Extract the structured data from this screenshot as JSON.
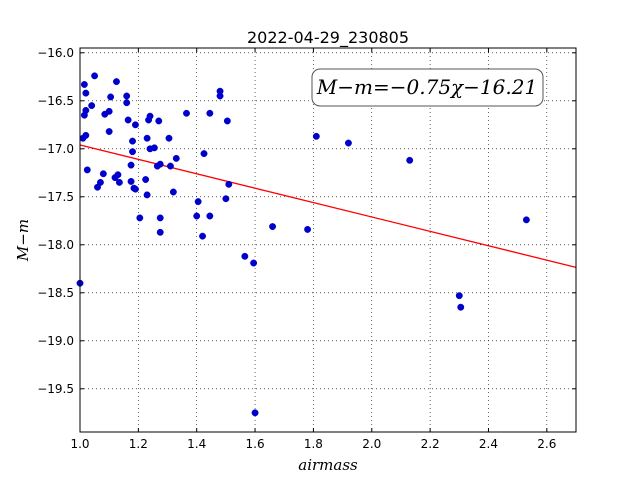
{
  "chart_data": {
    "type": "scatter",
    "title": "2022-04-29_230805",
    "xlabel": "airmass",
    "ylabel": "M−m",
    "xlim": [
      1.0,
      2.7
    ],
    "ylim": [
      -19.95,
      -15.95
    ],
    "y_inverted": true,
    "xticks": [
      1.0,
      1.2,
      1.4,
      1.6,
      1.8,
      2.0,
      2.2,
      2.4,
      2.6
    ],
    "xtick_labels": [
      "1.0",
      "1.2",
      "1.4",
      "1.6",
      "1.8",
      "2.0",
      "2.2",
      "2.4",
      "2.6"
    ],
    "yticks": [
      -16.0,
      -16.5,
      -17.0,
      -17.5,
      -18.0,
      -18.5,
      -19.0,
      -19.5
    ],
    "ytick_labels": [
      "−16.0",
      "−16.5",
      "−17.0",
      "−17.5",
      "−18.0",
      "−18.5",
      "−19.0",
      "−19.5"
    ],
    "grid": true,
    "annotation": "M−m=−0.75χ−16.21",
    "annotation_position": "top-right",
    "fit": {
      "slope": -0.75,
      "intercept": -16.21,
      "color": "#ff0000"
    },
    "point_color": "#0000cc",
    "points": [
      [
        1.0,
        -18.4
      ],
      [
        1.01,
        -16.89
      ],
      [
        1.015,
        -16.65
      ],
      [
        1.015,
        -16.33
      ],
      [
        1.02,
        -16.42
      ],
      [
        1.02,
        -16.6
      ],
      [
        1.02,
        -16.86
      ],
      [
        1.025,
        -17.22
      ],
      [
        1.04,
        -16.55
      ],
      [
        1.05,
        -16.24
      ],
      [
        1.06,
        -17.4
      ],
      [
        1.07,
        -17.35
      ],
      [
        1.08,
        -17.26
      ],
      [
        1.085,
        -16.64
      ],
      [
        1.1,
        -16.61
      ],
      [
        1.1,
        -16.82
      ],
      [
        1.105,
        -16.46
      ],
      [
        1.12,
        -17.3
      ],
      [
        1.13,
        -17.27
      ],
      [
        1.135,
        -17.35
      ],
      [
        1.125,
        -16.3
      ],
      [
        1.16,
        -16.45
      ],
      [
        1.16,
        -16.52
      ],
      [
        1.165,
        -16.7
      ],
      [
        1.175,
        -17.17
      ],
      [
        1.175,
        -17.34
      ],
      [
        1.18,
        -16.92
      ],
      [
        1.18,
        -17.03
      ],
      [
        1.185,
        -17.41
      ],
      [
        1.19,
        -17.42
      ],
      [
        1.19,
        -16.75
      ],
      [
        1.205,
        -17.72
      ],
      [
        1.225,
        -17.32
      ],
      [
        1.23,
        -17.48
      ],
      [
        1.23,
        -16.89
      ],
      [
        1.235,
        -16.7
      ],
      [
        1.24,
        -16.66
      ],
      [
        1.24,
        -17.0
      ],
      [
        1.255,
        -16.99
      ],
      [
        1.265,
        -17.18
      ],
      [
        1.27,
        -16.71
      ],
      [
        1.275,
        -17.72
      ],
      [
        1.275,
        -17.87
      ],
      [
        1.275,
        -17.16
      ],
      [
        1.305,
        -16.89
      ],
      [
        1.31,
        -17.18
      ],
      [
        1.32,
        -17.45
      ],
      [
        1.33,
        -17.1
      ],
      [
        1.365,
        -16.63
      ],
      [
        1.4,
        -17.7
      ],
      [
        1.405,
        -17.55
      ],
      [
        1.42,
        -17.91
      ],
      [
        1.425,
        -17.05
      ],
      [
        1.445,
        -17.7
      ],
      [
        1.445,
        -16.63
      ],
      [
        1.48,
        -16.4
      ],
      [
        1.48,
        -16.45
      ],
      [
        1.5,
        -17.52
      ],
      [
        1.505,
        -16.71
      ],
      [
        1.51,
        -17.37
      ],
      [
        1.565,
        -18.12
      ],
      [
        1.595,
        -18.19
      ],
      [
        1.6,
        -19.75
      ],
      [
        1.66,
        -17.81
      ],
      [
        1.78,
        -17.84
      ],
      [
        1.81,
        -16.87
      ],
      [
        1.92,
        -16.94
      ],
      [
        2.13,
        -17.12
      ],
      [
        2.3,
        -18.53
      ],
      [
        2.305,
        -18.65
      ],
      [
        2.53,
        -17.74
      ]
    ]
  }
}
